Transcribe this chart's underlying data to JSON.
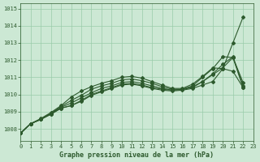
{
  "background_color": "#cce8d4",
  "plot_bg_color": "#cce8d4",
  "grid_color": "#99ccaa",
  "line_color": "#2d5a2d",
  "marker_color": "#2d5a2d",
  "title": "Graphe pression niveau de la mer (hPa)",
  "xlim": [
    0,
    23
  ],
  "ylim": [
    1007.3,
    1015.3
  ],
  "yticks": [
    1008,
    1009,
    1010,
    1011,
    1012,
    1013,
    1014,
    1015
  ],
  "xticks": [
    0,
    1,
    2,
    3,
    4,
    5,
    6,
    7,
    8,
    9,
    10,
    11,
    12,
    13,
    14,
    15,
    16,
    17,
    18,
    19,
    20,
    21,
    22,
    23
  ],
  "series": [
    [
      1007.75,
      1008.3,
      1008.55,
      1008.85,
      1009.2,
      1009.35,
      1009.6,
      1009.95,
      1010.15,
      1010.35,
      1010.55,
      1010.6,
      1010.5,
      1010.35,
      1010.25,
      1010.2,
      1010.25,
      1010.35,
      1010.55,
      1010.75,
      1011.5,
      1013.0,
      1014.5
    ],
    [
      1007.75,
      1008.3,
      1008.55,
      1008.85,
      1009.2,
      1009.35,
      1009.65,
      1010.0,
      1010.2,
      1010.4,
      1010.6,
      1010.65,
      1010.55,
      1010.4,
      1010.3,
      1010.25,
      1010.3,
      1010.4,
      1010.75,
      1011.15,
      1011.55,
      1012.15,
      1010.7
    ],
    [
      1007.75,
      1008.3,
      1008.55,
      1008.9,
      1009.25,
      1009.5,
      1009.8,
      1010.1,
      1010.35,
      1010.5,
      1010.7,
      1010.75,
      1010.65,
      1010.5,
      1010.35,
      1010.25,
      1010.3,
      1010.45,
      1010.75,
      1011.2,
      1011.75,
      1012.2,
      1010.5
    ],
    [
      1007.75,
      1008.3,
      1008.55,
      1008.9,
      1009.3,
      1009.65,
      1009.95,
      1010.3,
      1010.5,
      1010.65,
      1010.85,
      1010.9,
      1010.8,
      1010.65,
      1010.45,
      1010.3,
      1010.3,
      1010.5,
      1011.0,
      1011.5,
      1012.2,
      1012.15,
      1010.4
    ],
    [
      1007.75,
      1008.3,
      1008.6,
      1008.95,
      1009.35,
      1009.85,
      1010.2,
      1010.45,
      1010.65,
      1010.8,
      1011.0,
      1011.05,
      1010.95,
      1010.75,
      1010.55,
      1010.35,
      1010.35,
      1010.6,
      1011.05,
      1011.55,
      1011.5,
      1011.35,
      1010.4
    ]
  ]
}
